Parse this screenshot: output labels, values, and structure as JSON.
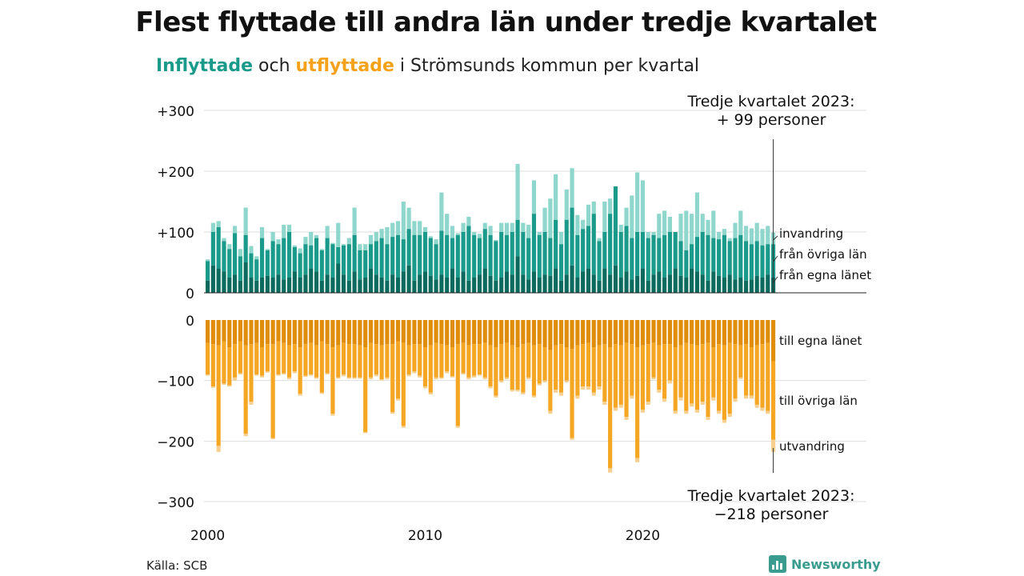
{
  "title": "Flest flyttade till andra län under tredje kvartalet",
  "subtitle": {
    "part1": "Inflyttade",
    "part2": " och ",
    "part3": "utflyttade",
    "part4": " i Strömsunds kommun per kvartal"
  },
  "source": "Källa: SCB",
  "brand": "Newsworthy",
  "colors": {
    "in_dark": "#0c6b5e",
    "in_mid": "#1a9a8a",
    "in_light": "#8fd6cc",
    "out_dark": "#e08d0c",
    "out_mid": "#f5a623",
    "out_light": "#f7d08f",
    "grid": "#dddddd",
    "brand": "#3a9b8f"
  },
  "chart_data": {
    "type": "bar",
    "x_start": "2000 Q1",
    "x_end": "2023 Q3",
    "x_ticks": [
      "2000",
      "2010",
      "2020"
    ],
    "upper": {
      "y_ticks": [
        "+300",
        "+200",
        "+100",
        "0"
      ],
      "ylim": [
        0,
        300
      ],
      "series_names": [
        "från egna länet",
        "från övriga län",
        "invandring"
      ],
      "annotation_line1": "Tredje kvartalet 2023:",
      "annotation_line2": "+ 99 personer"
    },
    "lower": {
      "y_ticks": [
        "0",
        "−100",
        "−200",
        "−300"
      ],
      "ylim": [
        -300,
        0
      ],
      "series_names": [
        "till egna länet",
        "till övriga län",
        "utvandring"
      ],
      "annotation_line1": "Tredje kvartalet 2023:",
      "annotation_line2": "−218 personer"
    },
    "in_own": [
      20,
      45,
      40,
      35,
      25,
      30,
      20,
      50,
      25,
      20,
      25,
      28,
      25,
      30,
      22,
      25,
      35,
      25,
      30,
      40,
      35,
      20,
      30,
      25,
      48,
      30,
      20,
      35,
      22,
      25,
      40,
      30,
      25,
      20,
      30,
      25,
      35,
      45,
      20,
      30,
      35,
      28,
      22,
      30,
      25,
      40,
      25,
      35,
      20,
      25,
      30,
      40,
      28,
      20,
      25,
      35,
      30,
      60,
      30,
      22,
      35,
      25,
      30,
      28,
      40,
      20,
      30,
      45,
      25,
      35,
      40,
      30,
      20,
      40,
      30,
      45,
      25,
      35,
      22,
      28,
      40,
      20,
      30,
      35,
      25,
      30,
      40,
      28,
      25,
      40,
      35,
      30,
      20,
      35,
      28,
      25,
      30,
      22,
      25,
      20,
      22,
      28,
      25,
      30,
      25
    ],
    "in_other": [
      52,
      100,
      108,
      85,
      72,
      98,
      60,
      95,
      65,
      55,
      90,
      70,
      85,
      80,
      90,
      100,
      75,
      65,
      80,
      78,
      90,
      70,
      90,
      80,
      75,
      78,
      80,
      95,
      70,
      70,
      80,
      85,
      90,
      80,
      92,
      95,
      88,
      105,
      95,
      95,
      100,
      90,
      80,
      102,
      95,
      90,
      95,
      100,
      110,
      95,
      90,
      105,
      95,
      85,
      100,
      95,
      100,
      120,
      100,
      90,
      130,
      95,
      100,
      90,
      120,
      80,
      120,
      140,
      95,
      105,
      110,
      130,
      85,
      100,
      130,
      175,
      100,
      110,
      90,
      100,
      100,
      90,
      95,
      90,
      95,
      100,
      100,
      85,
      70,
      80,
      92,
      100,
      95,
      90,
      88,
      95,
      85,
      90,
      95,
      85,
      80,
      85,
      78,
      80,
      80
    ],
    "in_total": [
      55,
      115,
      118,
      90,
      80,
      110,
      72,
      140,
      77,
      60,
      108,
      72,
      100,
      88,
      112,
      112,
      78,
      73,
      92,
      100,
      95,
      72,
      110,
      82,
      115,
      80,
      90,
      140,
      80,
      80,
      95,
      100,
      105,
      108,
      115,
      118,
      150,
      140,
      118,
      118,
      108,
      93,
      88,
      165,
      130,
      110,
      98,
      115,
      125,
      100,
      97,
      115,
      110,
      87,
      115,
      115,
      115,
      212,
      115,
      112,
      185,
      100,
      140,
      155,
      195,
      100,
      170,
      205,
      128,
      120,
      145,
      150,
      90,
      150,
      155,
      175,
      112,
      140,
      160,
      198,
      185,
      100,
      100,
      130,
      135,
      125,
      95,
      130,
      135,
      130,
      165,
      130,
      120,
      135,
      100,
      105,
      90,
      115,
      135,
      110,
      106,
      115,
      105,
      110,
      99
    ],
    "out_own": [
      38,
      40,
      42,
      35,
      45,
      40,
      35,
      42,
      40,
      38,
      45,
      40,
      40,
      35,
      38,
      42,
      40,
      45,
      40,
      38,
      42,
      35,
      40,
      45,
      42,
      38,
      40,
      40,
      42,
      45,
      38,
      40,
      42,
      40,
      40,
      35,
      38,
      42,
      40,
      40,
      45,
      42,
      38,
      40,
      42,
      45,
      40,
      38,
      42,
      40,
      40,
      38,
      42,
      45,
      40,
      38,
      42,
      45,
      40,
      38,
      42,
      40,
      45,
      50,
      42,
      40,
      45,
      48,
      42,
      40,
      38,
      45,
      42,
      40,
      45,
      40,
      42,
      38,
      40,
      45,
      42,
      40,
      38,
      42,
      40,
      40,
      45,
      42,
      38,
      40,
      42,
      40,
      38,
      45,
      40,
      42,
      38,
      40,
      42,
      40,
      45,
      42,
      40,
      38,
      68
    ],
    "out_mid": [
      90,
      110,
      208,
      105,
      108,
      95,
      88,
      188,
      135,
      90,
      92,
      85,
      195,
      90,
      88,
      95,
      85,
      122,
      92,
      90,
      95,
      120,
      88,
      155,
      95,
      90,
      95,
      95,
      95,
      185,
      95,
      90,
      98,
      95,
      152,
      130,
      175,
      90,
      85,
      92,
      110,
      120,
      95,
      95,
      85,
      93,
      175,
      88,
      95,
      92,
      90,
      95,
      110,
      125,
      100,
      95,
      115,
      115,
      120,
      95,
      125,
      105,
      100,
      150,
      115,
      120,
      100,
      195,
      125,
      110,
      110,
      120,
      110,
      135,
      245,
      145,
      140,
      160,
      125,
      228,
      148,
      135,
      95,
      115,
      130,
      100,
      150,
      128,
      150,
      138,
      148,
      135,
      160,
      128,
      150,
      165,
      155,
      130,
      95,
      125,
      125,
      140,
      145,
      150,
      198
    ],
    "out_total": [
      92,
      112,
      218,
      107,
      110,
      100,
      90,
      192,
      140,
      92,
      95,
      87,
      197,
      92,
      90,
      98,
      88,
      125,
      94,
      92,
      97,
      122,
      90,
      158,
      97,
      93,
      97,
      97,
      97,
      187,
      98,
      93,
      100,
      98,
      155,
      133,
      178,
      93,
      88,
      95,
      113,
      123,
      98,
      97,
      88,
      95,
      178,
      90,
      98,
      95,
      92,
      98,
      113,
      128,
      103,
      98,
      118,
      118,
      123,
      98,
      128,
      108,
      103,
      155,
      120,
      125,
      103,
      198,
      130,
      115,
      115,
      125,
      115,
      140,
      252,
      150,
      145,
      165,
      130,
      235,
      153,
      140,
      98,
      120,
      135,
      105,
      155,
      133,
      155,
      143,
      153,
      140,
      165,
      133,
      155,
      170,
      160,
      135,
      98,
      130,
      130,
      145,
      150,
      155,
      218
    ],
    "side_labels_in": [
      "invandring",
      "från övriga län",
      "från egna länet"
    ],
    "side_labels_out": [
      "till egna länet",
      "till övriga län",
      "utvandring"
    ]
  }
}
